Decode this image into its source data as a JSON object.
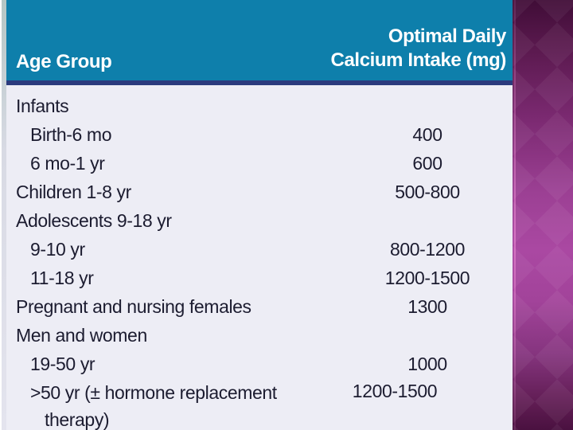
{
  "table": {
    "header": {
      "age_group": "Age Group",
      "calcium_line1": "Optimal Daily",
      "calcium_line2": "Calcium Intake (mg)"
    },
    "rows": [
      {
        "label": "Infants",
        "value": "",
        "indent": 0
      },
      {
        "label": "Birth-6 mo",
        "value": "400",
        "indent": 1
      },
      {
        "label": "6 mo-1 yr",
        "value": "600",
        "indent": 1
      },
      {
        "label": "Children 1-8 yr",
        "value": "500-800",
        "indent": 0
      },
      {
        "label": "Adolescents 9-18 yr",
        "value": "",
        "indent": 0
      },
      {
        "label": "9-10 yr",
        "value": "800-1200",
        "indent": 1
      },
      {
        "label": "11-18 yr",
        "value": "1200-1500",
        "indent": 1
      },
      {
        "label": "Pregnant and nursing females",
        "value": "1300",
        "indent": 0
      },
      {
        "label": "Men and women",
        "value": "",
        "indent": 0
      },
      {
        "label": "19-50 yr",
        "value": "1000",
        "indent": 1
      },
      {
        "label": ">50 yr (± hormone replacement therapy)",
        "value": "1200-1500",
        "indent": 1,
        "wrap": true
      }
    ],
    "colors": {
      "header_background": "#0e7fab",
      "header_text": "#ffffff",
      "header_divider": "#2b3a7d",
      "body_background": "#ededf5",
      "body_text": "#1c1c30",
      "side_panel_dark": "#400d37",
      "side_panel_bright": "#aa48a2"
    }
  }
}
